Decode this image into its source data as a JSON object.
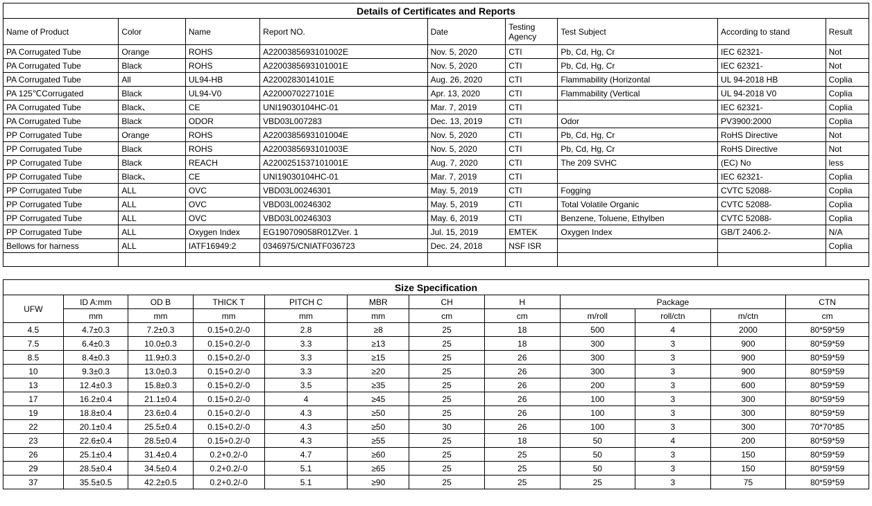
{
  "certificates": {
    "title": "Details of Certificates and Reports",
    "headers": [
      "Name of Product",
      "Color",
      "Name",
      "Report NO.",
      "Date",
      "Testing Agency",
      "Test Subject",
      "According to stand",
      "Result"
    ],
    "col_widths": [
      "155",
      "90",
      "100",
      "225",
      "105",
      "70",
      "215",
      "145",
      "58"
    ],
    "rows": [
      [
        "PA Corrugated Tube",
        "Orange",
        "ROHS",
        "A2200385693101002E",
        "Nov. 5, 2020",
        "CTI",
        "Pb, Cd, Hg, Cr",
        "IEC 62321-",
        "Not"
      ],
      [
        "PA Corrugated Tube",
        "Black",
        "ROHS",
        "A2200385693101001E",
        "Nov. 5, 2020",
        "CTI",
        "Pb, Cd, Hg, Cr",
        "IEC 62321-",
        "Not"
      ],
      [
        "PA Corrugated Tube",
        "All",
        "UL94-HB",
        "A2200283014101E",
        "Aug. 26, 2020",
        "CTI",
        "Flammability (Horizontal",
        "UL 94-2018 HB",
        "Coplia"
      ],
      [
        "PA 125℃Corrugated",
        "Black",
        "UL94-V0",
        "A2200070227101E",
        "Apr. 13, 2020",
        "CTI",
        "Flammability (Vertical",
        "UL 94-2018 V0",
        "Coplia"
      ],
      [
        "PA Corrugated Tube",
        "Black、",
        "CE",
        "UNI19030104HC-01",
        "Mar. 7, 2019",
        "CTI",
        "",
        "IEC 62321-",
        "Coplia"
      ],
      [
        "PA Corrugated Tube",
        "Black",
        "ODOR",
        "VBD03L007283",
        "Dec. 13, 2019",
        "CTI",
        "Odor",
        "PV3900:2000",
        "Coplia"
      ],
      [
        "PP Corrugated Tube",
        "Orange",
        "ROHS",
        "A2200385693101004E",
        "Nov. 5, 2020",
        "CTI",
        "Pb, Cd, Hg, Cr",
        "RoHS Directive",
        "Not"
      ],
      [
        "PP Corrugated Tube",
        "Black",
        "ROHS",
        "A2200385693101003E",
        "Nov. 5, 2020",
        "CTI",
        "Pb, Cd, Hg, Cr",
        "RoHS Directive",
        "Not"
      ],
      [
        "PP Corrugated Tube",
        "Black",
        "REACH",
        "A2200251537101001E",
        "Aug. 7, 2020",
        "CTI",
        "The 209 SVHC",
        "(EC) No",
        "less"
      ],
      [
        "PP Corrugated Tube",
        "Black、",
        "CE",
        "UNI19030104HC-01",
        "Mar. 7, 2019",
        "CTI",
        "",
        "IEC 62321-",
        "Coplia"
      ],
      [
        "PP Corrugated Tube",
        "ALL",
        "OVC",
        "VBD03L00246301",
        "May. 5, 2019",
        "CTI",
        "Fogging",
        "CVTC 52088-",
        "Coplia"
      ],
      [
        "PP Corrugated Tube",
        "ALL",
        "OVC",
        "VBD03L00246302",
        "May. 5, 2019",
        "CTI",
        "Total Volatile Organic",
        "CVTC 52088-",
        "Coplia"
      ],
      [
        "PP Corrugated Tube",
        "ALL",
        "OVC",
        "VBD03L00246303",
        "May. 6, 2019",
        "CTI",
        "Benzene, Toluene, Ethylben",
        "CVTC 52088-",
        "Coplia"
      ],
      [
        "PP Corrugated Tube",
        "ALL",
        "Oxygen Index",
        "EG190709058R01ZVer. 1",
        "Jul. 15, 2019",
        "EMTEK",
        "Oxygen Index",
        "GB/T 2406.2-",
        "N/A"
      ],
      [
        "Bellows for harness",
        "ALL",
        "IATF16949:2",
        "0346975/CNIATF036723",
        "Dec. 24, 2018",
        "NSF ISR",
        "",
        "",
        "Coplia"
      ],
      [
        "",
        "",
        "",
        "",
        "",
        "",
        "",
        "",
        ""
      ]
    ]
  },
  "size": {
    "title": "Size Specification",
    "col_widths": [
      "80",
      "86",
      "86",
      "95",
      "110",
      "82",
      "100",
      "100",
      "100",
      "100",
      "100",
      "110",
      "80"
    ],
    "header_top_labels": {
      "ufw": "UFW",
      "id": "ID A:mm",
      "od": "OD B",
      "thick": "THICK T",
      "pitch": "PITCH C",
      "mbr": "MBR",
      "ch": "CH",
      "h": "H",
      "package": "Package",
      "ctn": "CTN"
    },
    "header_sub_labels": {
      "id": "mm",
      "od": "mm",
      "thick": "mm",
      "pitch": "mm",
      "mbr": "mm",
      "ch": "cm",
      "h": "cm",
      "mroll": "m/roll",
      "rollctn": "roll/ctn",
      "mctn": "m/ctn",
      "ctn": "cm"
    },
    "rows": [
      [
        "4.5",
        "4.7±0.3",
        "7.2±0.3",
        "0.15+0.2/-0",
        "2.8",
        "≥8",
        "25",
        "18",
        "500",
        "4",
        "2000",
        "80*59*59"
      ],
      [
        "7.5",
        "6.4±0.3",
        "10.0±0.3",
        "0.15+0.2/-0",
        "3.3",
        "≥13",
        "25",
        "18",
        "300",
        "3",
        "900",
        "80*59*59"
      ],
      [
        "8.5",
        "8.4±0.3",
        "11.9±0.3",
        "0.15+0.2/-0",
        "3.3",
        "≥15",
        "25",
        "26",
        "300",
        "3",
        "900",
        "80*59*59"
      ],
      [
        "10",
        "9.3±0.3",
        "13.0±0.3",
        "0.15+0.2/-0",
        "3.3",
        "≥20",
        "25",
        "26",
        "300",
        "3",
        "900",
        "80*59*59"
      ],
      [
        "13",
        "12.4±0.3",
        "15.8±0.3",
        "0.15+0.2/-0",
        "3.5",
        "≥35",
        "25",
        "26",
        "200",
        "3",
        "600",
        "80*59*59"
      ],
      [
        "17",
        "16.2±0.4",
        "21.1±0.4",
        "0.15+0.2/-0",
        "4",
        "≥45",
        "25",
        "26",
        "100",
        "3",
        "300",
        "80*59*59"
      ],
      [
        "19",
        "18.8±0.4",
        "23.6±0.4",
        "0.15+0.2/-0",
        "4.3",
        "≥50",
        "25",
        "26",
        "100",
        "3",
        "300",
        "80*59*59"
      ],
      [
        "22",
        "20.1±0.4",
        "25.5±0.4",
        "0.15+0.2/-0",
        "4.3",
        "≥50",
        "30",
        "26",
        "100",
        "3",
        "300",
        "70*70*85"
      ],
      [
        "23",
        "22.6±0.4",
        "28.5±0.4",
        "0.15+0.2/-0",
        "4.3",
        "≥55",
        "25",
        "18",
        "50",
        "4",
        "200",
        "80*59*59"
      ],
      [
        "26",
        "25.1±0.4",
        "31.4±0.4",
        "0.2+0.2/-0",
        "4.7",
        "≥60",
        "25",
        "25",
        "50",
        "3",
        "150",
        "80*59*59"
      ],
      [
        "29",
        "28.5±0.4",
        "34.5±0.4",
        "0.2+0.2/-0",
        "5.1",
        "≥65",
        "25",
        "25",
        "50",
        "3",
        "150",
        "80*59*59"
      ],
      [
        "37",
        "35.5±0.5",
        "42.2±0.5",
        "0.2+0.2/-0",
        "5.1",
        "≥90",
        "25",
        "25",
        "25",
        "3",
        "75",
        "80*59*59"
      ]
    ]
  }
}
